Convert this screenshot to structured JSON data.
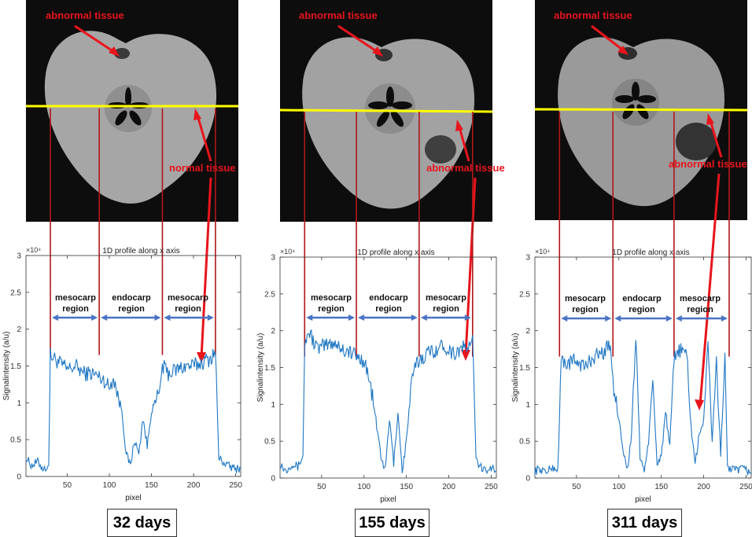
{
  "colors": {
    "signal": "#1f77c4",
    "guide_line": "#b01818",
    "annotation": "#e8141c",
    "region_arrow": "#4a74c4",
    "yellow_line": "#ffff00"
  },
  "panels": [
    {
      "day_label": "32 days",
      "annotations": {
        "top": "abnormal tissue",
        "right": "normal tissue"
      },
      "regions": [
        {
          "line1": "mesocarp",
          "line2": "region"
        },
        {
          "line1": "endocarp",
          "line2": "region"
        },
        {
          "line1": "mesocarp",
          "line2": "region"
        }
      ]
    },
    {
      "day_label": "155 days",
      "annotations": {
        "top": "abnormal tissue",
        "right": "abnormal tissue"
      },
      "regions": [
        {
          "line1": "mesocarp",
          "line2": "region"
        },
        {
          "line1": "endocarp",
          "line2": "region"
        },
        {
          "line1": "mesocarp",
          "line2": "region"
        }
      ]
    },
    {
      "day_label": "311 days",
      "annotations": {
        "top": "abnormal tissue",
        "right": "abnormal tissue"
      },
      "regions": [
        {
          "line1": "mesocarp",
          "line2": "region"
        },
        {
          "line1": "endocarp",
          "line2": "region"
        },
        {
          "line1": "mesocarp",
          "line2": "region"
        }
      ]
    }
  ],
  "chart_data": [
    {
      "type": "line",
      "title": "1D profile along x axis",
      "xlabel": "pixel",
      "ylabel": "Signalintensity (a/u)",
      "y_exponent": "×10⁴",
      "xlim": [
        1,
        256
      ],
      "ylim": [
        0,
        3
      ],
      "x_ticks": [
        50,
        100,
        150,
        200,
        250
      ],
      "y_ticks": [
        0,
        0.5,
        1,
        1.5,
        2,
        2.5,
        3
      ],
      "grid": false,
      "region_boundaries": [
        30,
        88,
        163,
        226
      ],
      "profile": [
        [
          1,
          0.25
        ],
        [
          8,
          0.15
        ],
        [
          15,
          0.2
        ],
        [
          22,
          0.1
        ],
        [
          28,
          0.15
        ],
        [
          30,
          1.65
        ],
        [
          40,
          1.55
        ],
        [
          50,
          1.45
        ],
        [
          60,
          1.5
        ],
        [
          70,
          1.4
        ],
        [
          80,
          1.4
        ],
        [
          88,
          1.35
        ],
        [
          95,
          1.3
        ],
        [
          100,
          1.2
        ],
        [
          105,
          1.35
        ],
        [
          110,
          1.1
        ],
        [
          115,
          0.9
        ],
        [
          120,
          0.3
        ],
        [
          125,
          0.15
        ],
        [
          130,
          0.5
        ],
        [
          135,
          0.3
        ],
        [
          140,
          0.8
        ],
        [
          145,
          0.4
        ],
        [
          150,
          0.9
        ],
        [
          155,
          1.0
        ],
        [
          160,
          1.2
        ],
        [
          163,
          1.5
        ],
        [
          170,
          1.4
        ],
        [
          180,
          1.45
        ],
        [
          190,
          1.5
        ],
        [
          200,
          1.5
        ],
        [
          210,
          1.55
        ],
        [
          220,
          1.6
        ],
        [
          226,
          1.7
        ],
        [
          230,
          0.25
        ],
        [
          240,
          0.15
        ],
        [
          250,
          0.1
        ],
        [
          256,
          0.12
        ]
      ]
    },
    {
      "type": "line",
      "title": "1D profile along x axis",
      "xlabel": "pixel",
      "ylabel": "Signalintensity (a/u)",
      "y_exponent": "×10⁴",
      "xlim": [
        1,
        256
      ],
      "ylim": [
        0,
        3
      ],
      "x_ticks": [
        50,
        100,
        150,
        200,
        250
      ],
      "y_ticks": [
        0,
        0.5,
        1,
        1.5,
        2,
        2.5,
        3
      ],
      "grid": false,
      "region_boundaries": [
        30,
        91,
        165,
        228
      ],
      "profile": [
        [
          1,
          0.2
        ],
        [
          8,
          0.1
        ],
        [
          15,
          0.2
        ],
        [
          22,
          0.15
        ],
        [
          28,
          0.3
        ],
        [
          30,
          1.8
        ],
        [
          35,
          2.0
        ],
        [
          45,
          1.75
        ],
        [
          55,
          1.8
        ],
        [
          65,
          1.85
        ],
        [
          75,
          1.75
        ],
        [
          85,
          1.7
        ],
        [
          91,
          1.65
        ],
        [
          100,
          1.6
        ],
        [
          105,
          1.4
        ],
        [
          110,
          1.1
        ],
        [
          115,
          0.7
        ],
        [
          120,
          0.3
        ],
        [
          125,
          0.1
        ],
        [
          130,
          0.8
        ],
        [
          135,
          0.2
        ],
        [
          140,
          0.9
        ],
        [
          145,
          0.1
        ],
        [
          150,
          0.5
        ],
        [
          155,
          1.2
        ],
        [
          160,
          1.5
        ],
        [
          165,
          1.6
        ],
        [
          175,
          1.7
        ],
        [
          185,
          1.75
        ],
        [
          195,
          1.8
        ],
        [
          205,
          1.7
        ],
        [
          215,
          1.75
        ],
        [
          225,
          1.8
        ],
        [
          228,
          1.9
        ],
        [
          232,
          0.25
        ],
        [
          240,
          0.1
        ],
        [
          250,
          0.15
        ],
        [
          256,
          0.1
        ]
      ]
    },
    {
      "type": "line",
      "title": "1D profile along x axis",
      "xlabel": "pixel",
      "ylabel": "Signalintensity (a/u)",
      "y_exponent": "×10⁴",
      "xlim": [
        1,
        256
      ],
      "ylim": [
        0,
        3
      ],
      "x_ticks": [
        50,
        100,
        150,
        200,
        250
      ],
      "y_ticks": [
        0,
        0.5,
        1,
        1.5,
        2,
        2.5,
        3
      ],
      "grid": false,
      "region_boundaries": [
        30,
        93,
        165,
        230
      ],
      "profile": [
        [
          1,
          0.1
        ],
        [
          8,
          0.12
        ],
        [
          15,
          0.08
        ],
        [
          22,
          0.15
        ],
        [
          28,
          0.1
        ],
        [
          32,
          1.6
        ],
        [
          40,
          1.55
        ],
        [
          50,
          1.6
        ],
        [
          60,
          1.5
        ],
        [
          70,
          1.65
        ],
        [
          80,
          1.7
        ],
        [
          90,
          1.8
        ],
        [
          93,
          1.3
        ],
        [
          100,
          0.8
        ],
        [
          105,
          0.4
        ],
        [
          110,
          0.1
        ],
        [
          115,
          0.6
        ],
        [
          120,
          1.95
        ],
        [
          125,
          0.3
        ],
        [
          130,
          0.1
        ],
        [
          135,
          0.5
        ],
        [
          140,
          1.3
        ],
        [
          145,
          0.2
        ],
        [
          150,
          0.3
        ],
        [
          155,
          0.9
        ],
        [
          160,
          0.4
        ],
        [
          165,
          1.6
        ],
        [
          170,
          1.75
        ],
        [
          180,
          1.7
        ],
        [
          185,
          0.7
        ],
        [
          190,
          0.2
        ],
        [
          195,
          0.6
        ],
        [
          200,
          0.8
        ],
        [
          205,
          1.8
        ],
        [
          210,
          0.5
        ],
        [
          215,
          1.6
        ],
        [
          220,
          0.3
        ],
        [
          225,
          1.7
        ],
        [
          228,
          0.15
        ],
        [
          235,
          0.1
        ],
        [
          245,
          0.12
        ],
        [
          256,
          0.08
        ]
      ]
    }
  ]
}
